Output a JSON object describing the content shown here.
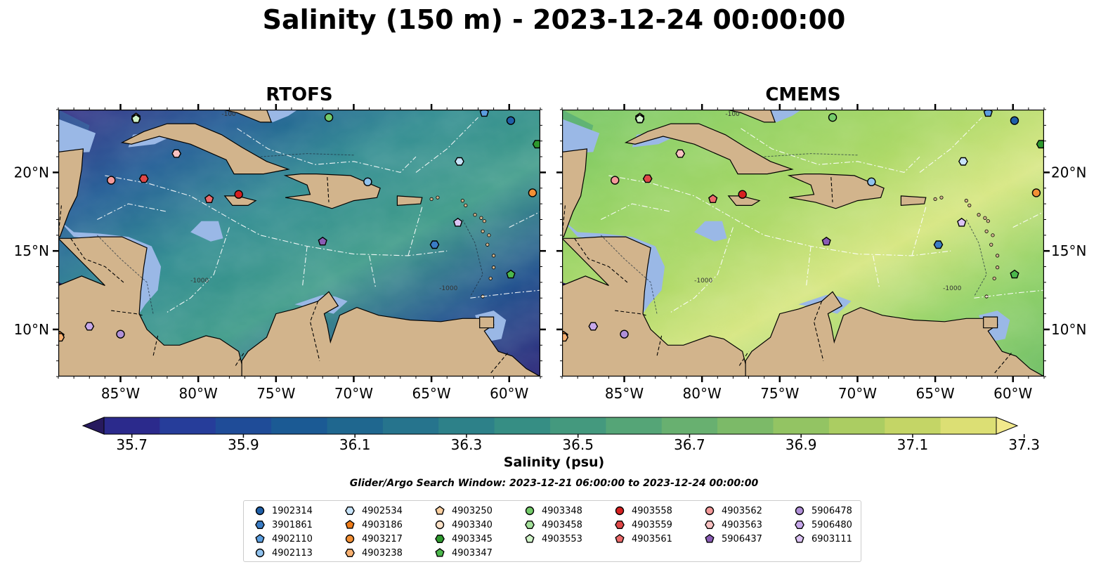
{
  "figure": {
    "title": "Salinity (150 m) - 2023-12-24 00:00:00",
    "colorbar_label": "Salinity (psu)",
    "search_window": "Glider/Argo Search Window: 2023-12-21 06:00:00 to 2023-12-24 00:00:00"
  },
  "chart_data": [
    {
      "type": "heatmap",
      "title": "RTOFS",
      "xlim": [
        -89,
        -58
      ],
      "ylim": [
        7,
        24
      ],
      "xticks": [
        "85°W",
        "80°W",
        "75°W",
        "70°W",
        "65°W",
        "60°W"
      ],
      "yticks": [
        "10°N",
        "15°N",
        "20°N"
      ],
      "colorbar": {
        "label": "Salinity (psu)",
        "range": [
          35.7,
          37.3
        ],
        "ticks": [
          "35.7",
          "35.9",
          "36.1",
          "36.3",
          "36.5",
          "36.7",
          "36.9",
          "37.1",
          "37.3"
        ],
        "colormap": "haline"
      },
      "contour_labels": [
        "-1000",
        "-100"
      ],
      "grid": true
    },
    {
      "type": "heatmap",
      "title": "CMEMS",
      "xlim": [
        -89,
        -58
      ],
      "ylim": [
        7,
        24
      ],
      "xticks": [
        "85°W",
        "80°W",
        "75°W",
        "70°W",
        "65°W",
        "60°W"
      ],
      "yticks": [
        "10°N",
        "15°N",
        "20°N"
      ],
      "colorbar": {
        "label": "Salinity (psu)",
        "range": [
          35.7,
          37.3
        ],
        "ticks": [
          "35.7",
          "35.9",
          "36.1",
          "36.3",
          "36.5",
          "36.7",
          "36.9",
          "37.1",
          "37.3"
        ],
        "colormap": "haline"
      },
      "contour_labels": [
        "-1000",
        "-100"
      ],
      "grid": true
    }
  ],
  "floats": [
    {
      "id": "1902314",
      "marker": "circle",
      "color": "#1f5fa8",
      "lon": -59.9,
      "lat": 23.3
    },
    {
      "id": "3901861",
      "marker": "hexagon",
      "color": "#3a7cc4",
      "lon": -64.8,
      "lat": 15.4
    },
    {
      "id": "4902110",
      "marker": "pentagon",
      "color": "#5b9ee0",
      "lon": -61.6,
      "lat": 23.8
    },
    {
      "id": "4902113",
      "marker": "circle",
      "color": "#90c2ee",
      "lon": -69.1,
      "lat": 19.4
    },
    {
      "id": "4902534",
      "marker": "hexagon",
      "color": "#c8e4fa",
      "lon": -63.2,
      "lat": 20.7
    },
    {
      "id": "4903186",
      "marker": "pentagon",
      "color": "#f07d1a",
      "lon": -88.9,
      "lat": 9.6
    },
    {
      "id": "4903217",
      "marker": "circle",
      "color": "#f39035",
      "lon": -58.5,
      "lat": 18.7
    },
    {
      "id": "4903238",
      "marker": "hexagon",
      "color": "#f7b070",
      "lon": -88.9,
      "lat": 9.5
    },
    {
      "id": "4903250",
      "marker": "pentagon",
      "color": "#fbcfa0",
      "lon": -84.0,
      "lat": 23.5
    },
    {
      "id": "4903340",
      "marker": "circle",
      "color": "#fde2c8",
      "lon": -84.0,
      "lat": 23.4
    },
    {
      "id": "4903345",
      "marker": "hexagon",
      "color": "#2e9a2e",
      "lon": -58.2,
      "lat": 21.8
    },
    {
      "id": "4903347",
      "marker": "pentagon",
      "color": "#4cb84c",
      "lon": -59.9,
      "lat": 13.5
    },
    {
      "id": "4903348",
      "marker": "circle",
      "color": "#74cc6a",
      "lon": -71.6,
      "lat": 23.5
    },
    {
      "id": "4903458",
      "marker": "hexagon",
      "color": "#a4e09a",
      "lon": -84.0,
      "lat": 23.4
    },
    {
      "id": "4903553",
      "marker": "pentagon",
      "color": "#d0f3c8",
      "lon": -84.0,
      "lat": 23.4
    },
    {
      "id": "4903558",
      "marker": "circle",
      "color": "#d62020",
      "lon": -77.4,
      "lat": 18.6
    },
    {
      "id": "4903559",
      "marker": "hexagon",
      "color": "#e04848",
      "lon": -83.5,
      "lat": 19.6
    },
    {
      "id": "4903561",
      "marker": "pentagon",
      "color": "#ec6a6a",
      "lon": -79.3,
      "lat": 18.3
    },
    {
      "id": "4903562",
      "marker": "circle",
      "color": "#f49a9a",
      "lon": -85.6,
      "lat": 19.5
    },
    {
      "id": "4903563",
      "marker": "hexagon",
      "color": "#f9c2c2",
      "lon": -81.4,
      "lat": 21.2
    },
    {
      "id": "5906437",
      "marker": "pentagon",
      "color": "#8a5cb5",
      "lon": -72.0,
      "lat": 15.6
    },
    {
      "id": "5906478",
      "marker": "circle",
      "color": "#b090d8",
      "lon": -85.0,
      "lat": 9.7
    },
    {
      "id": "5906480",
      "marker": "hexagon",
      "color": "#c7a8ea",
      "lon": -87.0,
      "lat": 10.2
    },
    {
      "id": "6903111",
      "marker": "pentagon",
      "color": "#dcc3f4",
      "lon": -63.3,
      "lat": 16.8
    }
  ],
  "colors": {
    "land": "#d2b48c",
    "shallow": "#9ab8e6",
    "coast": "#000000"
  }
}
